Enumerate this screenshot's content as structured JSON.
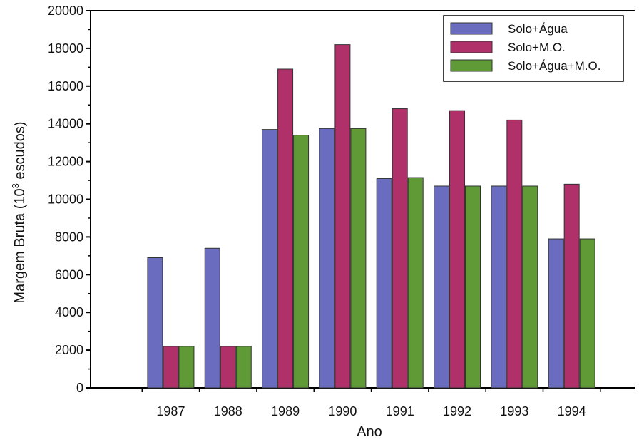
{
  "chart_data": {
    "type": "bar",
    "title": "",
    "xlabel": "Ano",
    "ylabel_prefix": "Margem Bruta (10",
    "ylabel_sup": "3",
    "ylabel_suffix": " escudos)",
    "ylim": [
      0,
      20000
    ],
    "yticks": [
      0,
      2000,
      4000,
      6000,
      8000,
      10000,
      12000,
      14000,
      16000,
      18000,
      20000
    ],
    "categories": [
      "1987",
      "1988",
      "1989",
      "1990",
      "1991",
      "1992",
      "1993",
      "1994"
    ],
    "series": [
      {
        "name": "Solo+Água",
        "color": "#6a6cc0",
        "values": [
          6900,
          7400,
          13700,
          13750,
          11100,
          10700,
          10700,
          7900
        ]
      },
      {
        "name": "Solo+M.O.",
        "color": "#b0306a",
        "values": [
          2200,
          2200,
          16900,
          18200,
          14800,
          14700,
          14200,
          10800
        ]
      },
      {
        "name": "Solo+Água+M.O.",
        "color": "#5f9a36",
        "values": [
          2200,
          2200,
          13400,
          13750,
          11150,
          10700,
          10700,
          7900
        ]
      }
    ],
    "grid": false,
    "legend_position": "top-right"
  }
}
